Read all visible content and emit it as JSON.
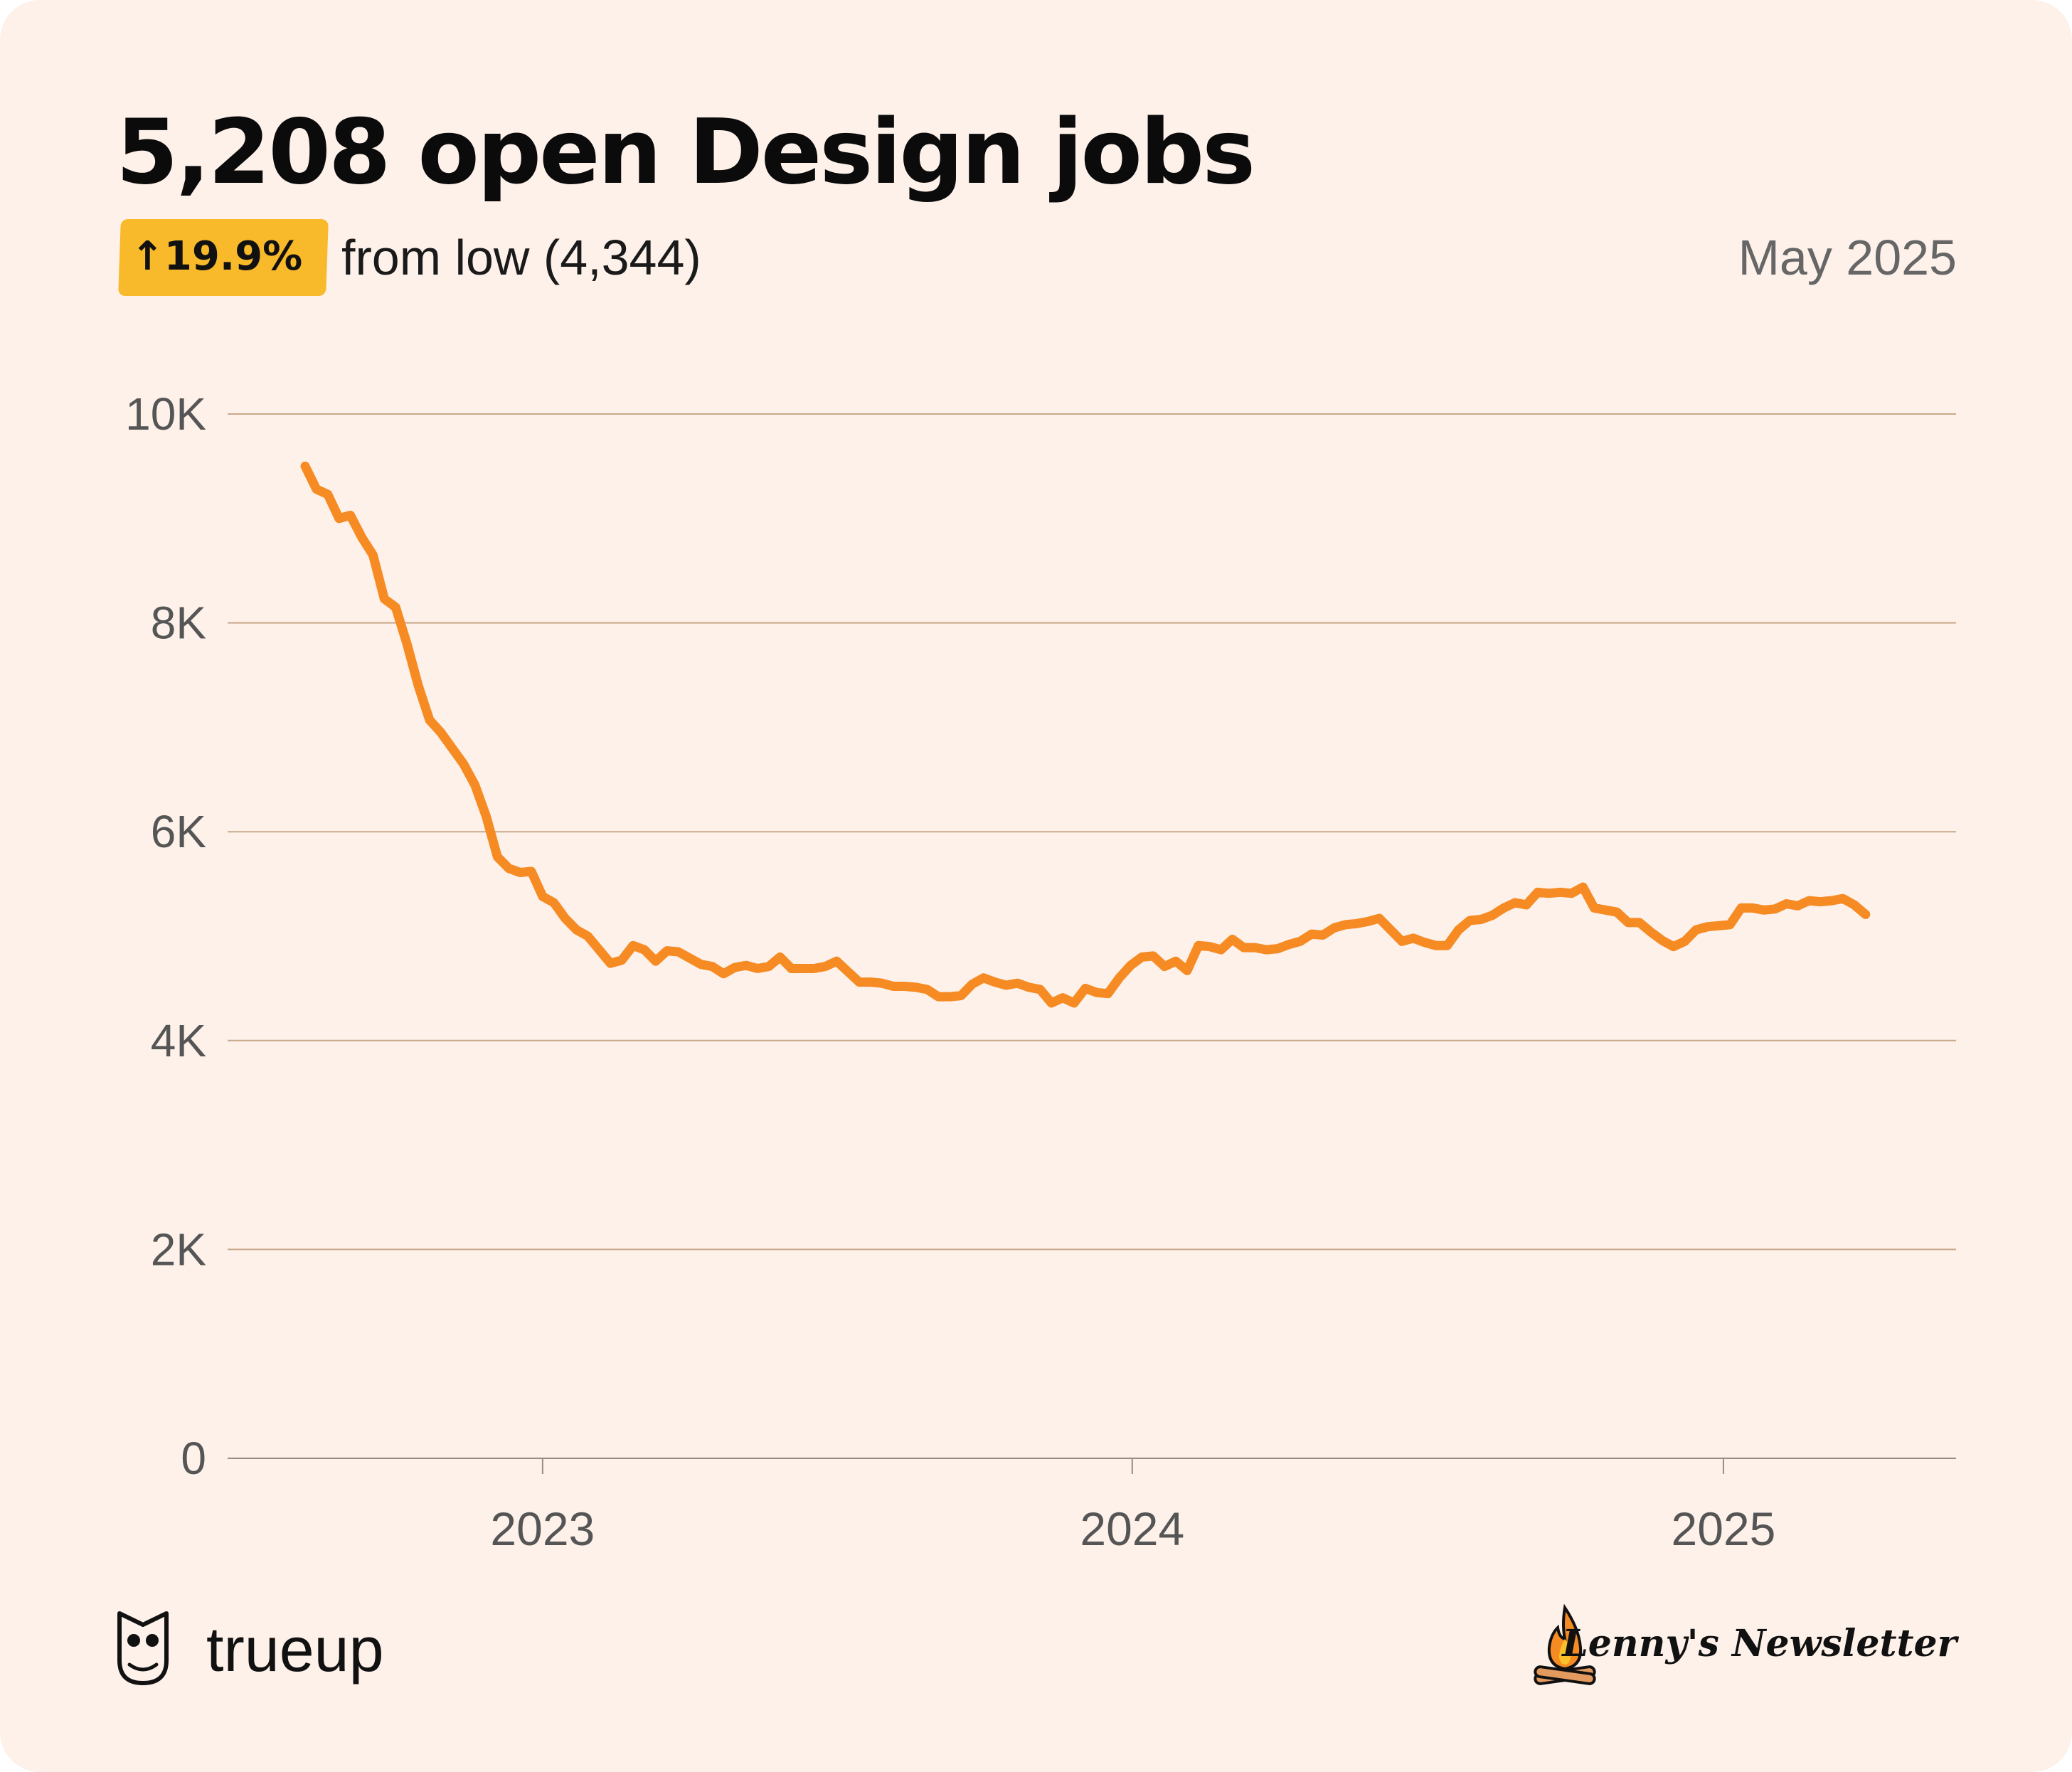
{
  "header": {
    "title": "5,208 open Design jobs",
    "badge": "↑19.9%",
    "subtitle": "from low (4,344)",
    "date": "May 2025"
  },
  "colors": {
    "background": "#fdf1ea",
    "line": "#f68b24",
    "badge": "#f8b92a",
    "grid": "#c9a98a"
  },
  "footer": {
    "brand": "trueup",
    "brand_icon": "owl-icon",
    "partner": "Lenny's Newsletter",
    "partner_icon": "campfire-icon"
  },
  "chart_data": {
    "type": "line",
    "title": "5,208 open Design jobs",
    "xlabel": "",
    "ylabel": "",
    "ylim": [
      0,
      10000
    ],
    "xlim": [
      "2022-06-20",
      "2025-05-25"
    ],
    "y_ticks": [
      0,
      2000,
      4000,
      6000,
      8000,
      10000
    ],
    "y_tick_labels": [
      "0",
      "2K",
      "4K",
      "6K",
      "8K",
      "10K"
    ],
    "x_ticks": [
      "2023-01-01",
      "2024-01-01",
      "2025-01-01"
    ],
    "x_tick_labels": [
      "2023",
      "2024",
      "2025"
    ],
    "grid": true,
    "series": [
      {
        "points": [
          [
            "2022-08-07",
            9500
          ],
          [
            "2022-08-14",
            9280
          ],
          [
            "2022-08-21",
            9230
          ],
          [
            "2022-08-28",
            9000
          ],
          [
            "2022-09-04",
            9030
          ],
          [
            "2022-09-11",
            8820
          ],
          [
            "2022-09-18",
            8650
          ],
          [
            "2022-09-25",
            8230
          ],
          [
            "2022-10-02",
            8150
          ],
          [
            "2022-10-09",
            7800
          ],
          [
            "2022-10-16",
            7400
          ],
          [
            "2022-10-23",
            7070
          ],
          [
            "2022-10-30",
            6950
          ],
          [
            "2022-11-06",
            6800
          ],
          [
            "2022-11-13",
            6650
          ],
          [
            "2022-11-20",
            6450
          ],
          [
            "2022-11-27",
            6150
          ],
          [
            "2022-12-04",
            5760
          ],
          [
            "2022-12-11",
            5650
          ],
          [
            "2022-12-18",
            5610
          ],
          [
            "2022-12-25",
            5620
          ],
          [
            "2023-01-01",
            5380
          ],
          [
            "2023-01-08",
            5320
          ],
          [
            "2023-01-15",
            5170
          ],
          [
            "2023-01-22",
            5060
          ],
          [
            "2023-01-29",
            5000
          ],
          [
            "2023-02-05",
            4870
          ],
          [
            "2023-02-12",
            4740
          ],
          [
            "2023-02-19",
            4770
          ],
          [
            "2023-02-26",
            4910
          ],
          [
            "2023-03-05",
            4870
          ],
          [
            "2023-03-12",
            4760
          ],
          [
            "2023-03-19",
            4860
          ],
          [
            "2023-03-26",
            4850
          ],
          [
            "2023-04-02",
            4790
          ],
          [
            "2023-04-09",
            4730
          ],
          [
            "2023-04-16",
            4710
          ],
          [
            "2023-04-23",
            4640
          ],
          [
            "2023-04-30",
            4700
          ],
          [
            "2023-05-07",
            4720
          ],
          [
            "2023-05-14",
            4690
          ],
          [
            "2023-05-21",
            4710
          ],
          [
            "2023-05-28",
            4800
          ],
          [
            "2023-06-04",
            4690
          ],
          [
            "2023-06-11",
            4690
          ],
          [
            "2023-06-18",
            4690
          ],
          [
            "2023-06-25",
            4710
          ],
          [
            "2023-07-02",
            4760
          ],
          [
            "2023-07-09",
            4660
          ],
          [
            "2023-07-16",
            4560
          ],
          [
            "2023-07-23",
            4560
          ],
          [
            "2023-07-30",
            4550
          ],
          [
            "2023-08-06",
            4520
          ],
          [
            "2023-08-13",
            4520
          ],
          [
            "2023-08-20",
            4510
          ],
          [
            "2023-08-27",
            4490
          ],
          [
            "2023-09-03",
            4420
          ],
          [
            "2023-09-10",
            4420
          ],
          [
            "2023-09-17",
            4430
          ],
          [
            "2023-09-24",
            4540
          ],
          [
            "2023-10-01",
            4600
          ],
          [
            "2023-10-08",
            4560
          ],
          [
            "2023-10-15",
            4530
          ],
          [
            "2023-10-22",
            4550
          ],
          [
            "2023-10-29",
            4510
          ],
          [
            "2023-11-05",
            4490
          ],
          [
            "2023-11-12",
            4360
          ],
          [
            "2023-11-19",
            4410
          ],
          [
            "2023-11-26",
            4360
          ],
          [
            "2023-12-03",
            4500
          ],
          [
            "2023-12-10",
            4460
          ],
          [
            "2023-12-17",
            4450
          ],
          [
            "2023-12-24",
            4600
          ],
          [
            "2023-12-31",
            4720
          ],
          [
            "2024-01-07",
            4800
          ],
          [
            "2024-01-14",
            4810
          ],
          [
            "2024-01-21",
            4710
          ],
          [
            "2024-01-28",
            4760
          ],
          [
            "2024-02-04",
            4670
          ],
          [
            "2024-02-11",
            4910
          ],
          [
            "2024-02-18",
            4900
          ],
          [
            "2024-02-25",
            4870
          ],
          [
            "2024-03-03",
            4970
          ],
          [
            "2024-03-10",
            4890
          ],
          [
            "2024-03-17",
            4890
          ],
          [
            "2024-03-24",
            4870
          ],
          [
            "2024-03-31",
            4880
          ],
          [
            "2024-04-07",
            4920
          ],
          [
            "2024-04-14",
            4950
          ],
          [
            "2024-04-21",
            5020
          ],
          [
            "2024-04-28",
            5010
          ],
          [
            "2024-05-05",
            5080
          ],
          [
            "2024-05-12",
            5110
          ],
          [
            "2024-05-19",
            5120
          ],
          [
            "2024-05-26",
            5140
          ],
          [
            "2024-06-02",
            5170
          ],
          [
            "2024-06-09",
            5060
          ],
          [
            "2024-06-16",
            4950
          ],
          [
            "2024-06-23",
            4980
          ],
          [
            "2024-06-30",
            4940
          ],
          [
            "2024-07-07",
            4910
          ],
          [
            "2024-07-14",
            4910
          ],
          [
            "2024-07-21",
            5060
          ],
          [
            "2024-07-28",
            5150
          ],
          [
            "2024-08-04",
            5160
          ],
          [
            "2024-08-11",
            5200
          ],
          [
            "2024-08-18",
            5270
          ],
          [
            "2024-08-25",
            5320
          ],
          [
            "2024-09-01",
            5300
          ],
          [
            "2024-09-08",
            5420
          ],
          [
            "2024-09-15",
            5410
          ],
          [
            "2024-09-22",
            5420
          ],
          [
            "2024-09-29",
            5410
          ],
          [
            "2024-10-06",
            5470
          ],
          [
            "2024-10-13",
            5270
          ],
          [
            "2024-10-20",
            5250
          ],
          [
            "2024-10-27",
            5230
          ],
          [
            "2024-11-03",
            5130
          ],
          [
            "2024-11-10",
            5130
          ],
          [
            "2024-11-17",
            5040
          ],
          [
            "2024-11-24",
            4960
          ],
          [
            "2024-12-01",
            4900
          ],
          [
            "2024-12-08",
            4950
          ],
          [
            "2024-12-15",
            5060
          ],
          [
            "2024-12-22",
            5090
          ],
          [
            "2024-12-29",
            5100
          ],
          [
            "2025-01-05",
            5110
          ],
          [
            "2025-01-12",
            5270
          ],
          [
            "2025-01-19",
            5270
          ],
          [
            "2025-01-26",
            5250
          ],
          [
            "2025-02-02",
            5260
          ],
          [
            "2025-02-09",
            5310
          ],
          [
            "2025-02-16",
            5290
          ],
          [
            "2025-02-23",
            5340
          ],
          [
            "2025-03-02",
            5330
          ],
          [
            "2025-03-09",
            5340
          ],
          [
            "2025-03-16",
            5360
          ],
          [
            "2025-03-23",
            5300
          ],
          [
            "2025-03-30",
            5208
          ]
        ]
      }
    ]
  }
}
